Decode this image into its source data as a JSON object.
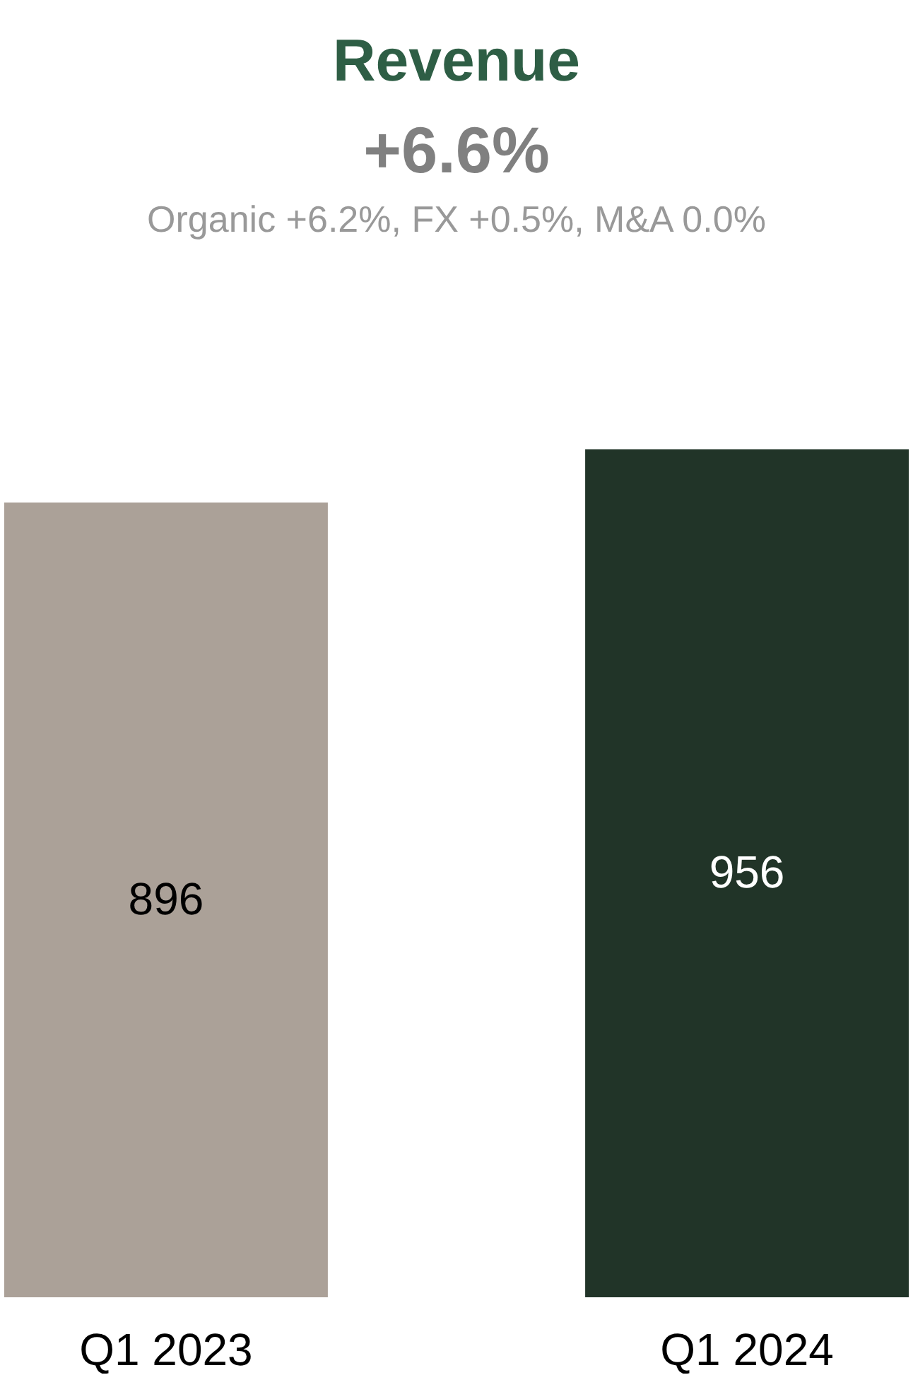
{
  "chart_data": {
    "type": "bar",
    "title": "Revenue",
    "subtitle": "+6.6%",
    "annotations": [
      "Organic +6.2%, FX +0.5%, M&A 0.0%"
    ],
    "categories": [
      "Q1 2023",
      "Q1 2024"
    ],
    "values": [
      896,
      956
    ],
    "colors": [
      "#aba198",
      "#213428"
    ],
    "data_labels": true
  }
}
